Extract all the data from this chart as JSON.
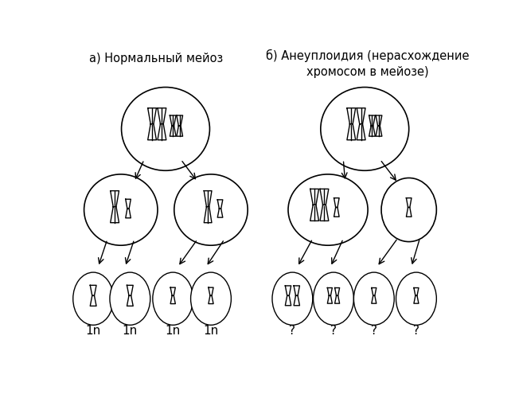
{
  "title_a": "а) Нормальный мейоз",
  "title_b": "б) Анеуплоидия (нерасхождение\nхромосом в мейозе)",
  "bg_color": "#ffffff",
  "line_color": "#000000",
  "label_normal": [
    "1n",
    "1n",
    "1n",
    "1n"
  ],
  "label_abnormal": [
    "?",
    "?",
    "?",
    "?"
  ],
  "title_fontsize": 10.5,
  "label_fontsize": 11
}
